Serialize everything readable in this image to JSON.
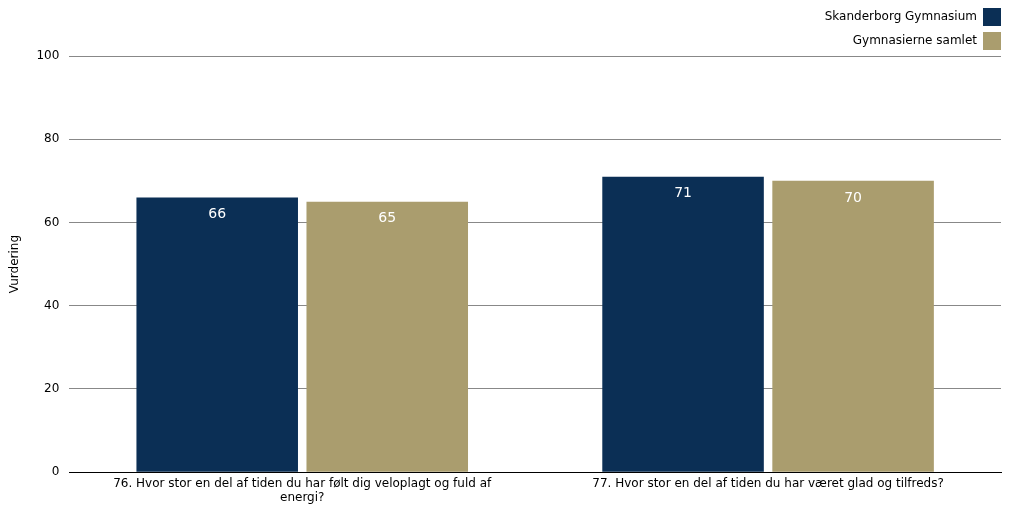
{
  "chart_data": {
    "type": "bar",
    "ylabel": "Vurdering",
    "categories": [
      "76. Hvor stor en del af tiden du har følt dig veloplagt og fuld af energi?",
      "77. Hvor stor en del af tiden du har været glad og tilfreds?"
    ],
    "series": [
      {
        "name": "Skanderborg Gymnasium",
        "color": "#0b2f55",
        "values": [
          66,
          71
        ]
      },
      {
        "name": "Gymnasierne samlet",
        "color": "#aa9d6e",
        "values": [
          65,
          70
        ]
      }
    ],
    "ylim": [
      0,
      100
    ],
    "yticks": [
      0,
      20,
      40,
      60,
      80,
      100
    ],
    "grid": "y",
    "legend": "top right",
    "data_labels": true
  }
}
